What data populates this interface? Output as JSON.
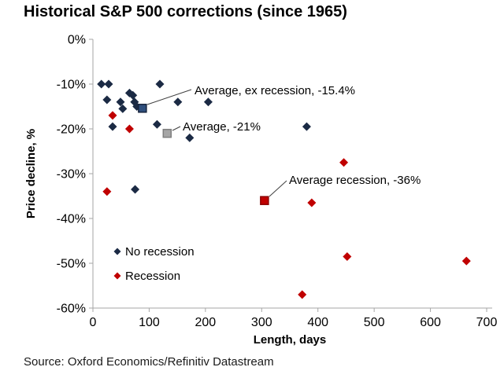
{
  "title": "Historical S&P 500 corrections (since 1965)",
  "source": "Source: Oxford Economics/Refinitiv Datastream",
  "colors": {
    "no_recession": "#1b2a44",
    "recession": "#c00000",
    "avg_ex_recession_fill": "#2f4f7d",
    "avg_ex_recession_stroke": "#16243d",
    "avg_overall_fill": "#a6a6a6",
    "avg_overall_stroke": "#7f7f7f",
    "avg_recession_fill": "#c00000",
    "avg_recession_stroke": "#8b0000",
    "axis": "#a6a6a6",
    "text": "#000000"
  },
  "chart_data": {
    "type": "scatter",
    "title": "Historical S&P 500 corrections (since 1965)",
    "xlabel": "Length, days",
    "ylabel": "Price decline, %",
    "xlim": [
      0,
      700
    ],
    "ylim": [
      -60,
      0
    ],
    "x_ticks": [
      0,
      100,
      200,
      300,
      400,
      500,
      600,
      700
    ],
    "x_tick_labels": [
      "0",
      "100",
      "200",
      "300",
      "400",
      "500",
      "600",
      "700"
    ],
    "y_ticks": [
      0,
      -10,
      -20,
      -30,
      -40,
      -50,
      -60
    ],
    "y_tick_labels": [
      "0%",
      "-10%",
      "-20%",
      "-30%",
      "-40%",
      "-50%",
      "-60%"
    ],
    "grid": false,
    "legend_position": "inside-lower-left",
    "series": [
      {
        "name": "No recession",
        "marker": "diamond",
        "color": "#1b2a44",
        "points": [
          [
            15,
            -10
          ],
          [
            28,
            -10
          ],
          [
            25,
            -13.5
          ],
          [
            49,
            -14
          ],
          [
            53,
            -15.5
          ],
          [
            65,
            -12
          ],
          [
            71,
            -12.5
          ],
          [
            74,
            -14
          ],
          [
            78,
            -15
          ],
          [
            35,
            -19.5
          ],
          [
            114,
            -19
          ],
          [
            119,
            -10
          ],
          [
            151,
            -14
          ],
          [
            205,
            -14
          ],
          [
            172,
            -22
          ],
          [
            75,
            -33.5
          ],
          [
            380,
            -19.5
          ]
        ]
      },
      {
        "name": "Recession",
        "marker": "diamond",
        "color": "#c00000",
        "points": [
          [
            35,
            -17
          ],
          [
            65,
            -20
          ],
          [
            25,
            -34
          ],
          [
            389,
            -36.5
          ],
          [
            446,
            -27.5
          ],
          [
            452,
            -48.5
          ],
          [
            372,
            -57
          ],
          [
            664,
            -49.5
          ]
        ]
      }
    ],
    "averages": [
      {
        "label": "Average, ex recession, -15.4%",
        "value": -15.4,
        "point": [
          88,
          -15.4
        ],
        "marker": "square",
        "fill": "#2f4f7d",
        "stroke": "#16243d"
      },
      {
        "label": "Average, -21%",
        "value": -21,
        "point": [
          132,
          -21
        ],
        "marker": "square",
        "fill": "#a6a6a6",
        "stroke": "#7f7f7f"
      },
      {
        "label": "Average recession, -36%",
        "value": -36,
        "point": [
          305,
          -36
        ],
        "marker": "square",
        "fill": "#c00000",
        "stroke": "#8b0000"
      }
    ],
    "legend": [
      {
        "label": "No recession",
        "color": "#1b2a44"
      },
      {
        "label": "Recession",
        "color": "#c00000"
      }
    ]
  }
}
